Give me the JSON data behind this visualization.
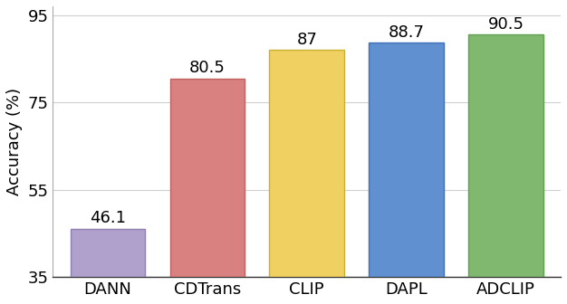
{
  "categories": [
    "DANN",
    "CDTrans",
    "CLIP",
    "DAPL",
    "ADCLIP"
  ],
  "values": [
    46.1,
    80.5,
    87.0,
    88.7,
    90.5
  ],
  "value_labels": [
    "46.1",
    "80.5",
    "87",
    "88.7",
    "90.5"
  ],
  "bar_colors": [
    "#b0a0cc",
    "#d98080",
    "#f0d060",
    "#6090d0",
    "#80b870"
  ],
  "bar_edgecolors": [
    "#9080b0",
    "#c06060",
    "#c8b030",
    "#4070b8",
    "#60a050"
  ],
  "ylabel": "Accuracy (%)",
  "ylim": [
    35,
    97
  ],
  "yticks": [
    35,
    55,
    75,
    95
  ],
  "label_fontsize": 13,
  "tick_fontsize": 13,
  "value_fontsize": 13,
  "background_color": "#ffffff",
  "grid_color": "#d0d0d0"
}
